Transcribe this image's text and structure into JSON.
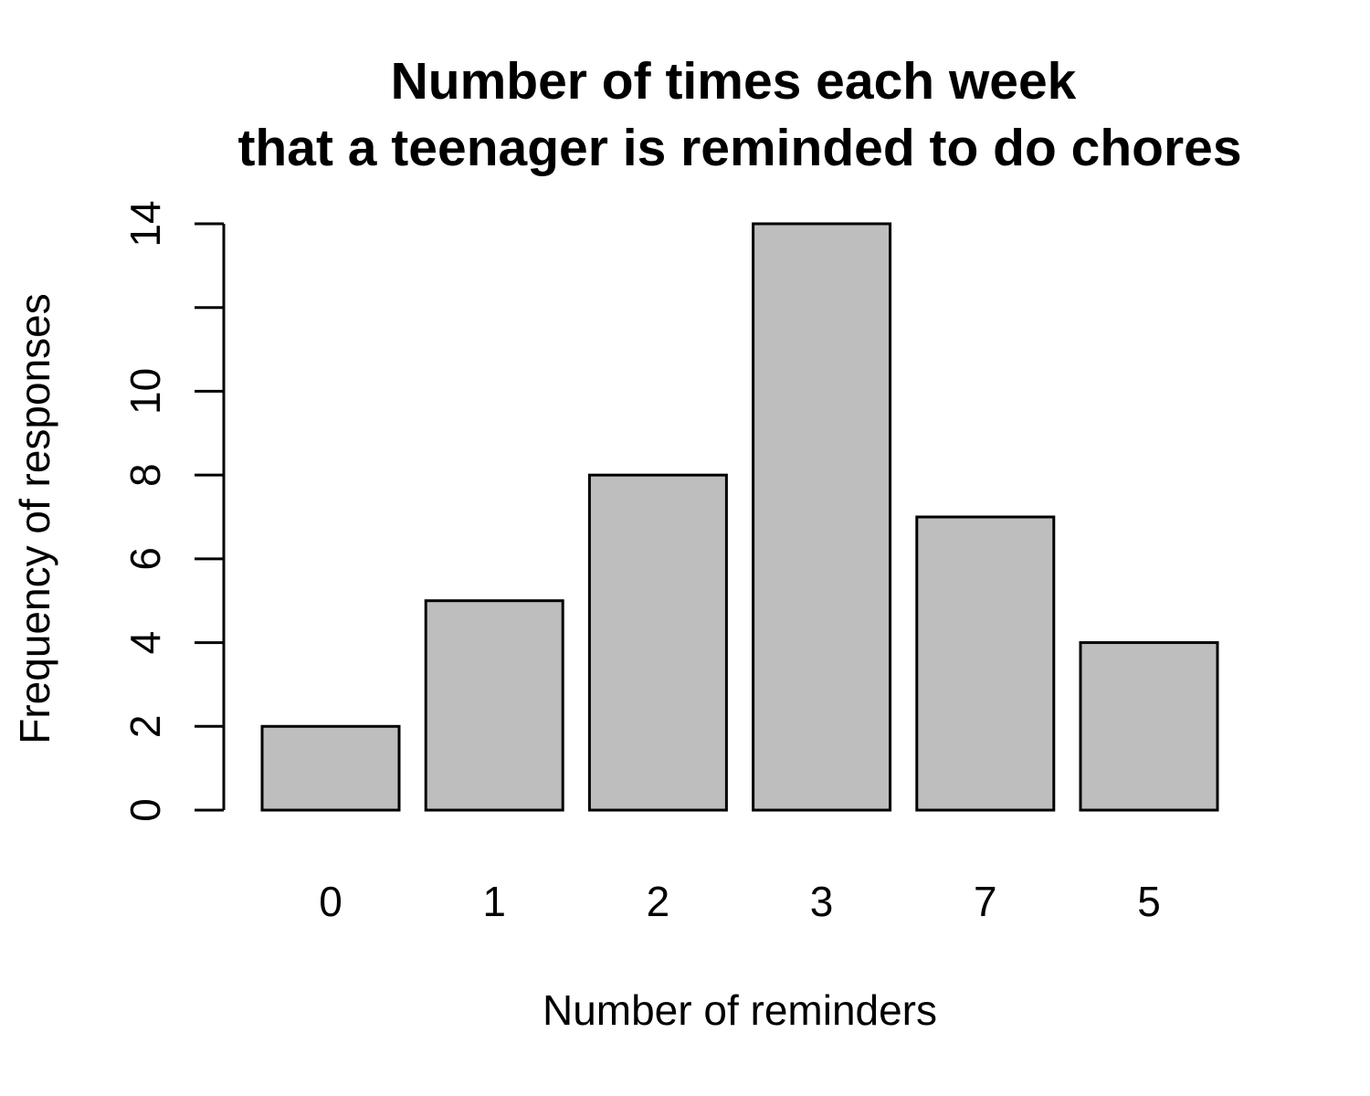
{
  "chart_data": {
    "type": "bar",
    "title_lines": [
      "Number of times each week",
      "that a teenager is reminded to do chores"
    ],
    "xlabel": "Number of reminders",
    "ylabel": "Frequency of responses",
    "categories": [
      "0",
      "1",
      "2",
      "3",
      "7",
      "5"
    ],
    "values": [
      2,
      5,
      8,
      14,
      7,
      4
    ],
    "ylim": [
      0,
      14
    ],
    "yticks": [
      0,
      2,
      4,
      6,
      8,
      10,
      12,
      14
    ],
    "ytick_labels": [
      "0",
      "2",
      "4",
      "6",
      "8",
      "10",
      "",
      "14"
    ],
    "bar_color": "#bebebe",
    "grid": false,
    "legend": "none"
  }
}
